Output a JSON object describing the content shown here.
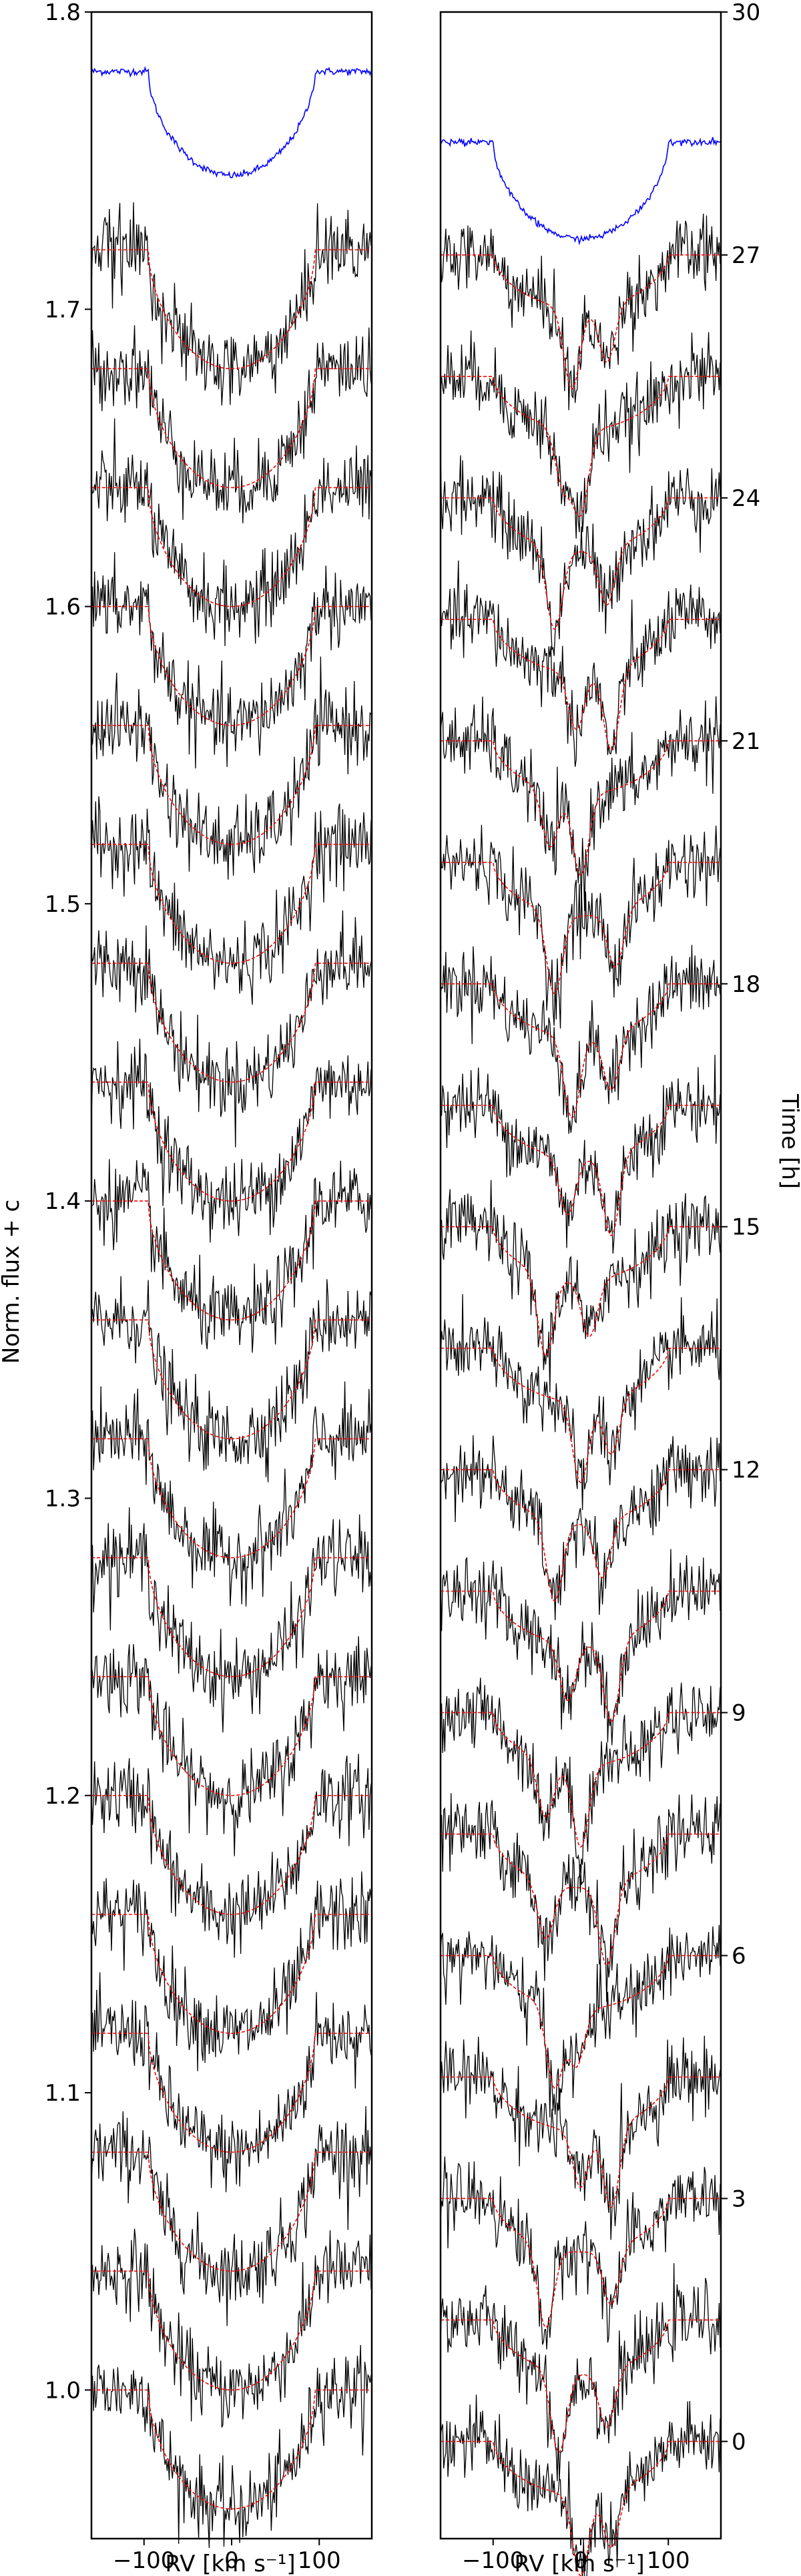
{
  "chart_data": [
    {
      "panel": "left",
      "type": "line",
      "xlabel": "RV [km s⁻¹]",
      "ylabel": "Norm. flux + c",
      "xlim": [
        -160,
        160
      ],
      "ylim": [
        0.95,
        1.8
      ],
      "x_ticks": [
        "−100",
        "0",
        "100"
      ],
      "x_tick_values": [
        -100,
        0,
        100
      ],
      "y_ticks": [
        "1.0",
        "1.1",
        "1.2",
        "1.3",
        "1.4",
        "1.5",
        "1.6",
        "1.7",
        "1.8"
      ],
      "y_tick_values": [
        1.0,
        1.1,
        1.2,
        1.3,
        1.4,
        1.5,
        1.6,
        1.7,
        1.8
      ],
      "profile_offsets": [
        1.0,
        1.04,
        1.08,
        1.12,
        1.16,
        1.2,
        1.24,
        1.28,
        1.32,
        1.36,
        1.4,
        1.44,
        1.48,
        1.52,
        1.56,
        1.6,
        1.64,
        1.68,
        1.72
      ],
      "profile_depth": 0.04,
      "profile_halfwidth_kms": 95,
      "template": {
        "baseline": 1.78,
        "depth": 0.035,
        "color": "#0000ff"
      },
      "observed_color": "#000000",
      "model_color": "#ff0000",
      "grid": false,
      "legend": "none"
    },
    {
      "panel": "right",
      "type": "line",
      "xlabel": "RV [km s⁻¹]",
      "ylabel": "Time [h]",
      "xlim": [
        -160,
        160
      ],
      "ylim": [
        -1.2,
        30
      ],
      "x_ticks": [
        "−100",
        "0",
        "100"
      ],
      "x_tick_values": [
        -100,
        0,
        100
      ],
      "y_ticks": [
        "0",
        "3",
        "6",
        "9",
        "12",
        "15",
        "18",
        "21",
        "24",
        "27",
        "30"
      ],
      "y_tick_values": [
        0,
        3,
        6,
        9,
        12,
        15,
        18,
        21,
        24,
        27,
        30
      ],
      "profile_offsets_h": [
        0,
        1.5,
        3,
        4.5,
        6,
        7.5,
        9,
        10.5,
        12,
        13.5,
        15,
        16.5,
        18,
        19.5,
        21,
        22.5,
        24,
        25.5,
        27
      ],
      "feature_velocity_kms": [
        [
          0,
          35
        ],
        [
          -25,
          30
        ],
        [
          -40,
          35
        ],
        [
          35,
          0
        ],
        [
          -30,
          -5
        ],
        [
          30,
          -40
        ],
        [
          0,
          -40
        ],
        [
          35,
          -15
        ],
        [
          -30,
          25
        ],
        [
          0,
          35
        ],
        [
          -40,
          10
        ],
        [
          35,
          -15
        ],
        [
          -10,
          35
        ],
        [
          -30,
          40
        ],
        [
          0,
          -35
        ],
        [
          35,
          -5
        ],
        [
          -30,
          30
        ],
        [
          0,
          -20
        ],
        [
          -10,
          30
        ]
      ],
      "template": {
        "baseline": 28.4,
        "color": "#0000ff"
      },
      "observed_color": "#000000",
      "model_color": "#ff0000",
      "grid": false,
      "legend": "none"
    }
  ]
}
